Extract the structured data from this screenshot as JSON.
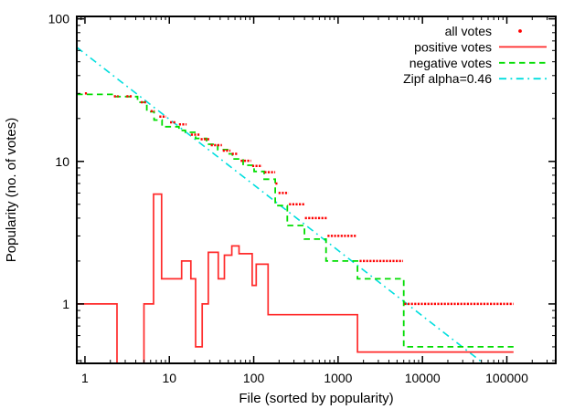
{
  "page": {
    "background": "#ffffff"
  },
  "chart_data": {
    "type": "line",
    "title": "",
    "xlabel": "File (sorted by popularity)",
    "ylabel": "Popularity (no. of votes)",
    "xscale": "log",
    "yscale": "log",
    "xlim": [
      0.8,
      380000
    ],
    "ylim": [
      0.383,
      104
    ],
    "grid": false,
    "x_major_ticks": [
      1,
      10,
      100,
      1000,
      10000,
      100000
    ],
    "x_tick_labels": [
      "1",
      "10",
      "100",
      "1000",
      "10000",
      "100000"
    ],
    "y_major_ticks": [
      1,
      10,
      100
    ],
    "y_tick_labels": [
      "1",
      "10",
      "100"
    ],
    "legend": {
      "position": "top-right",
      "entries": [
        {
          "label": "all votes",
          "marker": "dot",
          "color": "#ff0000"
        },
        {
          "label": "positive votes",
          "marker": "line",
          "color": "#ff2a2a"
        },
        {
          "label": "negative votes",
          "marker": "dash",
          "color": "#00dd00"
        },
        {
          "label": "Zipf alpha=0.46",
          "marker": "dashdot",
          "color": "#00dede"
        }
      ]
    },
    "series": {
      "all_votes": {
        "label": "all votes",
        "color": "#ff0000",
        "style": "dots",
        "dot_rows": [
          [
            1,
            1.06,
            30
          ],
          [
            2.2,
            2.5,
            28.6
          ],
          [
            3.1,
            3.6,
            28.6
          ],
          [
            4.6,
            5.3,
            26
          ],
          [
            6,
            6.7,
            22.5
          ],
          [
            7.6,
            9.2,
            20.6
          ],
          [
            10.2,
            11.8,
            18.8
          ],
          [
            13,
            16,
            18.2
          ],
          [
            18,
            23,
            15.4
          ],
          [
            23.5,
            30,
            14.3
          ],
          [
            31,
            42,
            13
          ],
          [
            43,
            53,
            11.9
          ],
          [
            55,
            64,
            11.3
          ],
          [
            70,
            93,
            10.1
          ],
          [
            96,
            126,
            9.3
          ],
          [
            134,
            180,
            8.4
          ],
          [
            181,
            196,
            7
          ],
          [
            197,
            258,
            6
          ],
          [
            262,
            398,
            5
          ],
          [
            405,
            740,
            4
          ],
          [
            750,
            1680,
            3
          ],
          [
            1800,
            5900,
            2
          ],
          [
            6100,
            120000,
            1
          ]
        ]
      },
      "positive_votes": {
        "label": "positive votes",
        "color": "#ff2a2a",
        "style": "solid",
        "segments": [
          [
            [
              0.8,
              1
            ],
            [
              2.4,
              1
            ],
            [
              2.4,
              0.36
            ]
          ],
          [
            [
              5.0,
              0.36
            ],
            [
              5.0,
              1
            ],
            [
              6.5,
              1
            ],
            [
              6.5,
              5.9
            ],
            [
              8.1,
              5.9
            ],
            [
              8.1,
              1.5
            ],
            [
              14,
              1.5
            ],
            [
              14,
              2
            ],
            [
              18,
              2
            ],
            [
              18,
              1.5
            ],
            [
              20.5,
              1.5
            ],
            [
              20.5,
              0.5
            ],
            [
              24.5,
              0.5
            ],
            [
              24.5,
              1
            ],
            [
              29,
              1
            ],
            [
              29,
              2.3
            ],
            [
              38,
              2.3
            ],
            [
              38,
              1.5
            ],
            [
              45,
              1.5
            ],
            [
              45,
              2.2
            ],
            [
              55,
              2.2
            ],
            [
              55,
              2.55
            ],
            [
              67,
              2.55
            ],
            [
              67,
              2.25
            ],
            [
              96,
              2.25
            ],
            [
              96,
              1.35
            ],
            [
              107,
              1.35
            ],
            [
              107,
              1.9
            ],
            [
              148,
              1.9
            ],
            [
              148,
              0.84
            ],
            [
              1700,
              0.84
            ],
            [
              1700,
              0.46
            ],
            [
              120000,
              0.46
            ]
          ]
        ]
      },
      "negative_votes": {
        "label": "negative votes",
        "color": "#00dd00",
        "style": "dashed",
        "steps": [
          [
            0.8,
            29.5
          ],
          [
            2.3,
            28.5
          ],
          [
            4.2,
            26
          ],
          [
            5.4,
            22.3
          ],
          [
            6.6,
            19.5
          ],
          [
            8.2,
            17.5
          ],
          [
            13,
            16.5
          ],
          [
            15.5,
            16
          ],
          [
            20.5,
            14.5
          ],
          [
            27.6,
            13.2
          ],
          [
            37.5,
            12.1
          ],
          [
            49,
            11.3
          ],
          [
            56,
            10.4
          ],
          [
            75,
            9.4
          ],
          [
            101,
            8.5
          ],
          [
            133,
            7.5
          ],
          [
            180,
            4.9
          ],
          [
            250,
            3.55
          ],
          [
            400,
            2.85
          ],
          [
            720,
            2
          ],
          [
            1700,
            1.5
          ],
          [
            6000,
            0.5
          ]
        ],
        "end_x": 120000
      },
      "zipf": {
        "label": "Zipf alpha=0.46",
        "color": "#00dede",
        "style": "dashdot",
        "alpha": 0.46,
        "coeff": 57,
        "x_start": 0.8,
        "x_end": 58800
      }
    }
  }
}
